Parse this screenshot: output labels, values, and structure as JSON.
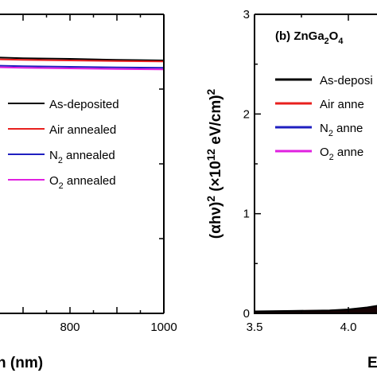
{
  "chart_data": [
    {
      "type": "line",
      "xlabel_visible": "h (nm)",
      "xlim_visible": [
        600,
        1000
      ],
      "x_ticks": [
        "800",
        "1000"
      ],
      "legend_placement": "center-right",
      "series": [
        {
          "name": "As-deposited",
          "color": "#000000",
          "x": [
            560,
            600,
            700,
            800,
            900,
            1000
          ],
          "y": [
            0.97,
            0.972,
            0.969,
            0.968,
            0.966,
            0.965
          ]
        },
        {
          "name": "Air annealed",
          "color": "#e8201e",
          "x": [
            560,
            600,
            700,
            800,
            900,
            1000
          ],
          "y": [
            0.967,
            0.968,
            0.966,
            0.965,
            0.964,
            0.963
          ]
        },
        {
          "name": "N_2 annealed",
          "color": "#1f1fc0",
          "x": [
            560,
            600,
            700,
            800,
            900,
            1000
          ],
          "y": [
            0.955,
            0.956,
            0.954,
            0.953,
            0.952,
            0.951
          ]
        },
        {
          "name": "O_2 annealed",
          "color": "#e020e0",
          "x": [
            560,
            600,
            700,
            800,
            900,
            1000
          ],
          "y": [
            0.952,
            0.953,
            0.951,
            0.95,
            0.949,
            0.948
          ]
        }
      ],
      "ylim": [
        0,
        1
      ]
    },
    {
      "type": "line",
      "title": "(b) ZnGa_2O_4",
      "ylabel": "(αhν)^2 (×10^12 eV/cm)^2",
      "xlabel_visible": "E",
      "xlim": [
        3.5,
        4.35
      ],
      "ylim": [
        0,
        3
      ],
      "x_ticks": [
        "3.5",
        "4.0"
      ],
      "y_ticks": [
        "0",
        "1",
        "2",
        "3"
      ],
      "legend_placement": "top-right",
      "series": [
        {
          "name": "As-deposi",
          "color": "#000000",
          "x": [
            3.5,
            3.7,
            3.9,
            4.0,
            4.1,
            4.2,
            4.3
          ],
          "y": [
            0.02,
            0.025,
            0.03,
            0.04,
            0.06,
            0.09,
            0.13
          ]
        },
        {
          "name": "Air anne",
          "color": "#e8201e",
          "x": [
            3.5,
            3.7,
            3.9,
            4.0,
            4.1,
            4.2,
            4.3
          ],
          "y": [
            0.018,
            0.022,
            0.028,
            0.037,
            0.055,
            0.085,
            0.12
          ]
        },
        {
          "name": "N_2 anne",
          "color": "#1f1fc0",
          "x": [
            3.5,
            3.7,
            3.9,
            4.0,
            4.1,
            4.2,
            4.3
          ],
          "y": [
            0.016,
            0.02,
            0.026,
            0.034,
            0.05,
            0.08,
            0.115
          ]
        },
        {
          "name": "O_2 anne",
          "color": "#e020e0",
          "x": [
            3.5,
            3.7,
            3.9,
            4.0,
            4.1,
            4.2,
            4.3
          ],
          "y": [
            0.015,
            0.019,
            0.025,
            0.032,
            0.048,
            0.075,
            0.11
          ]
        }
      ]
    }
  ]
}
